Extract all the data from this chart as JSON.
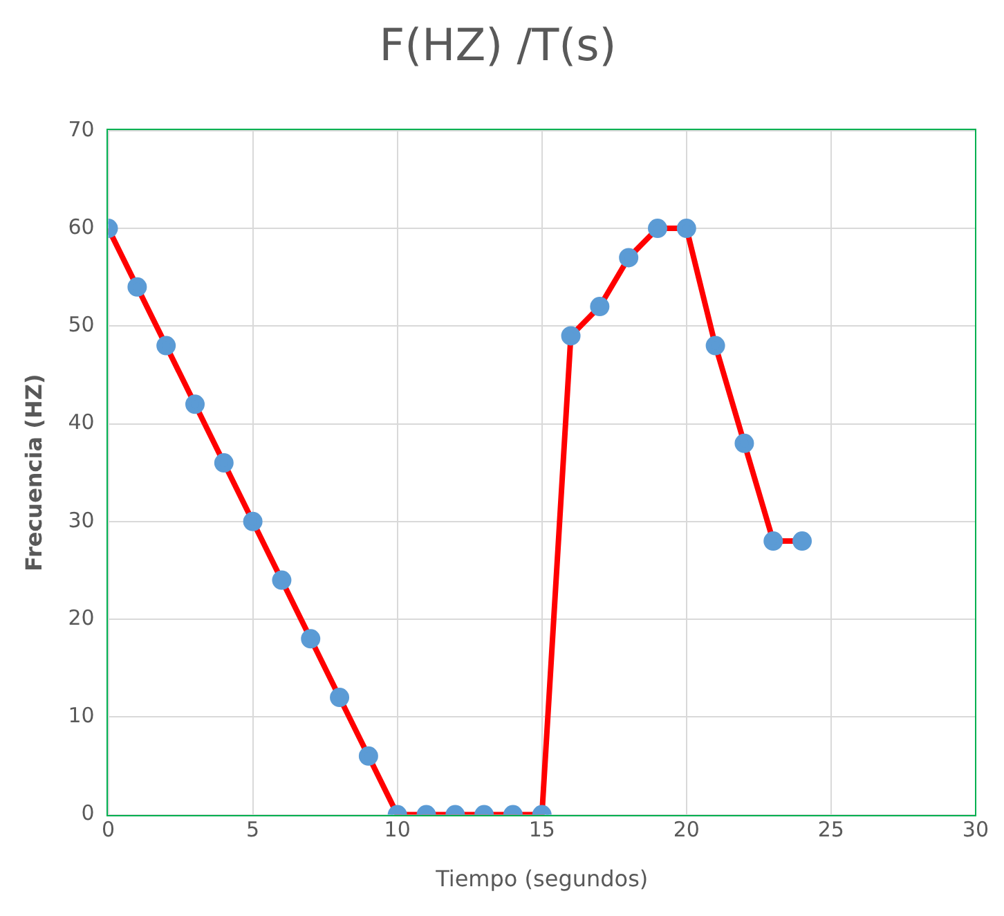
{
  "chart_data": {
    "type": "line",
    "title": "F(HZ) /T(s)",
    "xlabel": "Tiempo (segundos)",
    "ylabel": "Frecuencia (HZ)",
    "x": [
      0,
      1,
      2,
      3,
      4,
      5,
      6,
      7,
      8,
      9,
      10,
      11,
      12,
      13,
      14,
      15,
      16,
      17,
      18,
      19,
      20,
      21,
      22,
      23,
      24
    ],
    "series": [
      {
        "color": "#ff0000",
        "values": [
          60,
          54,
          48,
          42,
          36,
          30,
          24,
          18,
          12,
          6,
          0,
          0,
          0,
          0,
          0,
          0,
          49,
          52,
          57,
          60,
          60,
          48,
          38,
          28,
          28
        ]
      }
    ],
    "xlim": [
      0,
      30
    ],
    "xticks": [
      0,
      5,
      10,
      15,
      20,
      25,
      30
    ],
    "ylim": [
      0,
      70
    ],
    "yticks": [
      0,
      10,
      20,
      30,
      40,
      50,
      60,
      70
    ],
    "grid": true,
    "legend": false,
    "marker": "circle",
    "line_style": "solid"
  }
}
